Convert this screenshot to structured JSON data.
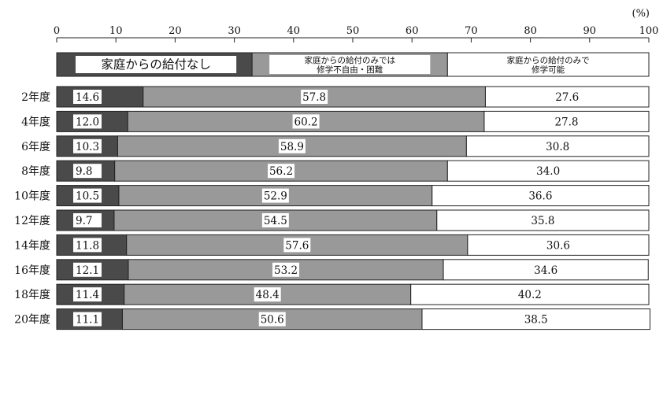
{
  "chart_data": {
    "type": "bar",
    "orientation": "horizontal",
    "stacked": true,
    "title": "",
    "xlabel": "",
    "ylabel": "",
    "unit": "(%)",
    "xlim": [
      0,
      100
    ],
    "xticks": [
      "0",
      "10",
      "20",
      "30",
      "40",
      "50",
      "60",
      "70",
      "80",
      "90",
      "100"
    ],
    "categories": [
      "2年度",
      "4年度",
      "6年度",
      "8年度",
      "10年度",
      "12年度",
      "14年度",
      "16年度",
      "18年度",
      "20年度"
    ],
    "series": [
      {
        "name": "家庭からの給付なし",
        "color": "#4a4a4a",
        "values": [
          14.6,
          12.0,
          10.3,
          9.8,
          10.5,
          9.7,
          11.8,
          12.1,
          11.4,
          11.1
        ],
        "labels": [
          "14.6",
          "12.0",
          "10.3",
          "9.8",
          "10.5",
          "9.7",
          "11.8",
          "12.1",
          "11.4",
          "11.1"
        ]
      },
      {
        "name": "家庭からの給付のみでは修学不自由・困難",
        "name_lines": [
          "家庭からの給付のみでは",
          "修学不自由・困難"
        ],
        "color": "#999999",
        "values": [
          57.8,
          60.2,
          58.9,
          56.2,
          52.9,
          54.5,
          57.6,
          53.2,
          48.4,
          50.6
        ],
        "labels": [
          "57.8",
          "60.2",
          "58.9",
          "56.2",
          "52.9",
          "54.5",
          "57.6",
          "53.2",
          "48.4",
          "50.6"
        ]
      },
      {
        "name": "家庭からの給付のみで修学可能",
        "name_lines": [
          "家庭からの給付のみで",
          "修学可能"
        ],
        "color": "#ffffff",
        "values": [
          27.6,
          27.8,
          30.8,
          34.0,
          36.6,
          35.8,
          30.6,
          34.6,
          40.2,
          38.5
        ],
        "labels": [
          "27.6",
          "27.8",
          "30.8",
          "34.0",
          "36.6",
          "35.8",
          "30.6",
          "34.6",
          "40.2",
          "38.5"
        ]
      }
    ],
    "legend": {
      "placement": "top-inside-bar",
      "segment_values": [
        33,
        33,
        34
      ]
    },
    "grid": false
  }
}
